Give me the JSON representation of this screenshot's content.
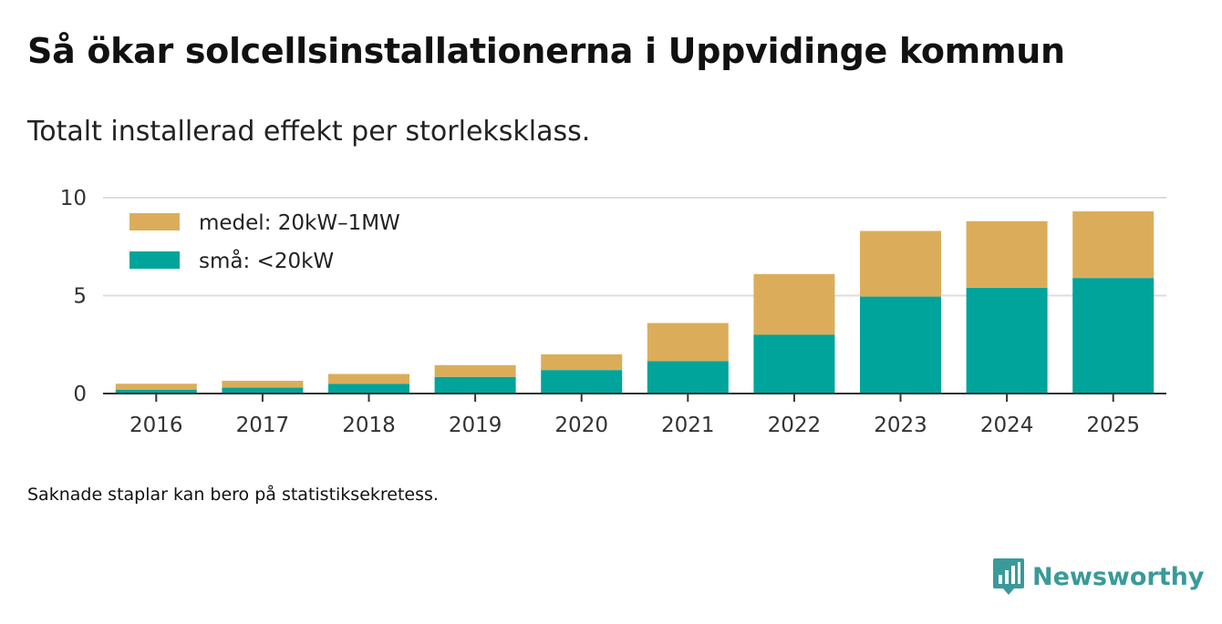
{
  "title": "Så ökar solcellsinstallationerna i Uppvidinge kommun",
  "subtitle": "Totalt installerad effekt per storleksklass.",
  "note": "Saknade staplar kan bero på statistiksekretess.",
  "brand": {
    "name": "Newsworthy",
    "color": "#3a9a9a",
    "icon": "newsworthy-logo-icon"
  },
  "chart_data": {
    "type": "bar",
    "stacked": true,
    "categories": [
      "2016",
      "2017",
      "2018",
      "2019",
      "2020",
      "2021",
      "2022",
      "2023",
      "2024",
      "2025"
    ],
    "series": [
      {
        "name": "små: <20kW",
        "color": "#00a49a",
        "values": [
          0.2,
          0.3,
          0.5,
          0.85,
          1.2,
          1.65,
          3.0,
          4.95,
          5.4,
          5.9
        ]
      },
      {
        "name": "medel: 20kW–1MW",
        "color": "#dbad5b",
        "values": [
          0.3,
          0.35,
          0.5,
          0.6,
          0.8,
          1.95,
          3.1,
          3.35,
          3.4,
          3.4
        ]
      }
    ],
    "legend": [
      {
        "name": "medel: 20kW–1MW",
        "color": "#dbad5b"
      },
      {
        "name": "små: <20kW",
        "color": "#00a49a"
      }
    ],
    "yticks": [
      "0",
      "5",
      "10"
    ],
    "ylim": [
      0,
      10
    ],
    "grid": true,
    "legend_position": "top-left",
    "xlabel": "",
    "ylabel": ""
  }
}
